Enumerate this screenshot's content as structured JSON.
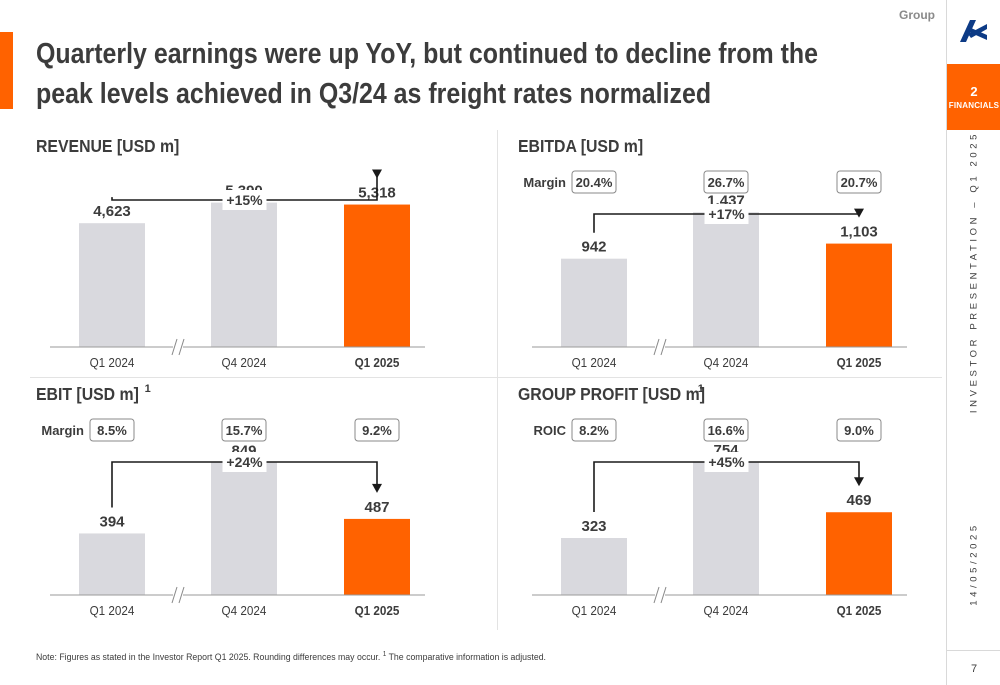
{
  "header": {
    "group_label": "Group",
    "title_line1": "Quarterly earnings were up YoY, but continued to decline from the",
    "title_line2": "peak levels achieved in Q3/24 as freight rates normalized"
  },
  "sidebar": {
    "section_number": "2",
    "section_name": "FINANCIALS",
    "presentation_label": "INVESTOR PRESENTATION – Q1 2025",
    "date_label": "14/05/2025",
    "page_number": "7"
  },
  "colors": {
    "accent": "#ff6200",
    "bar_grey": "#d9d9de",
    "text": "#3c3c3c"
  },
  "footnote": {
    "text": "Note: Figures as stated in the Investor Report Q1 2025. Rounding differences may occur.",
    "sup": "1",
    "text2": "The comparative information is adjusted."
  },
  "chart_data": [
    {
      "id": "revenue",
      "type": "bar",
      "title": "REVENUE [USD m]",
      "title_sup": "",
      "categories": [
        "Q1 2024",
        "Q4 2024",
        "Q1 2025"
      ],
      "values": [
        4623,
        5390,
        5318
      ],
      "value_labels": [
        "4,623",
        "5,390",
        "5,318"
      ],
      "highlight_index": 2,
      "change_label": "+15%",
      "ratio_label": "",
      "ratio_values": [],
      "ylim": [
        0,
        5600
      ]
    },
    {
      "id": "ebitda",
      "type": "bar",
      "title": "EBITDA [USD m]",
      "title_sup": "",
      "categories": [
        "Q1 2024",
        "Q4 2024",
        "Q1 2025"
      ],
      "values": [
        942,
        1437,
        1103
      ],
      "value_labels": [
        "942",
        "1,437",
        "1,103"
      ],
      "highlight_index": 2,
      "change_label": "+17%",
      "ratio_label": "Margin",
      "ratio_values": [
        "20.4%",
        "26.7%",
        "20.7%"
      ],
      "ylim": [
        0,
        1600
      ]
    },
    {
      "id": "ebit",
      "type": "bar",
      "title": "EBIT [USD m]",
      "title_sup": "1",
      "categories": [
        "Q1 2024",
        "Q4 2024",
        "Q1 2025"
      ],
      "values": [
        394,
        849,
        487
      ],
      "value_labels": [
        "394",
        "849",
        "487"
      ],
      "highlight_index": 2,
      "change_label": "+24%",
      "ratio_label": "Margin",
      "ratio_values": [
        "8.5%",
        "15.7%",
        "9.2%"
      ],
      "ylim": [
        0,
        960
      ]
    },
    {
      "id": "group-profit",
      "type": "bar",
      "title": "GROUP PROFIT [USD m]",
      "title_sup": "1",
      "categories": [
        "Q1 2024",
        "Q4 2024",
        "Q1 2025"
      ],
      "values": [
        323,
        754,
        469
      ],
      "value_labels": [
        "323",
        "754",
        "469"
      ],
      "highlight_index": 2,
      "change_label": "+45%",
      "ratio_label": "ROIC",
      "ratio_values": [
        "8.2%",
        "16.6%",
        "9.0%"
      ],
      "ylim": [
        0,
        850
      ]
    }
  ]
}
